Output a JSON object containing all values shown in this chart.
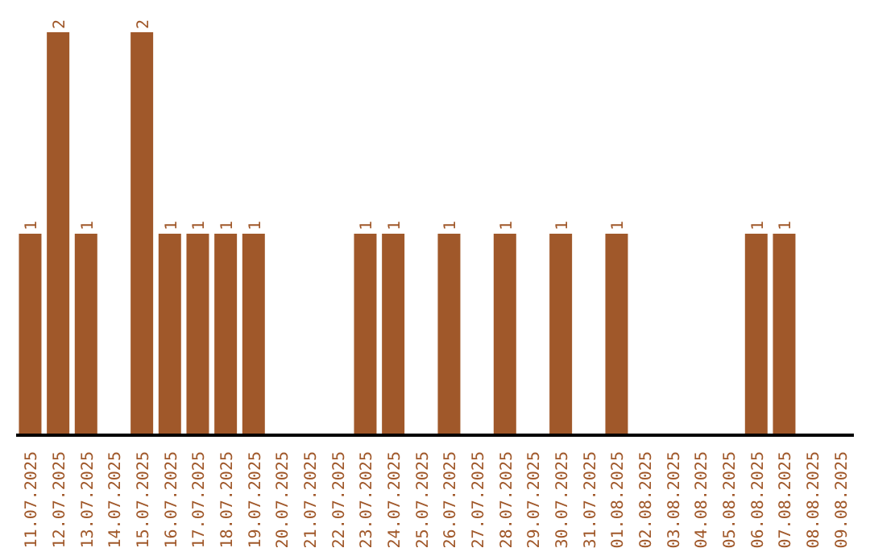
{
  "chart_data": {
    "type": "bar",
    "categories": [
      "11.07.2025",
      "12.07.2025",
      "13.07.2025",
      "14.07.2025",
      "15.07.2025",
      "16.07.2025",
      "17.07.2025",
      "18.07.2025",
      "19.07.2025",
      "20.07.2025",
      "21.07.2025",
      "22.07.2025",
      "23.07.2025",
      "24.07.2025",
      "25.07.2025",
      "26.07.2025",
      "27.07.2025",
      "28.07.2025",
      "29.07.2025",
      "30.07.2025",
      "31.07.2025",
      "01.08.2025",
      "02.08.2025",
      "03.08.2025",
      "04.08.2025",
      "05.08.2025",
      "06.08.2025",
      "07.08.2025",
      "08.08.2025",
      "09.08.2025"
    ],
    "values": [
      1,
      2,
      1,
      0,
      2,
      1,
      1,
      1,
      1,
      0,
      0,
      0,
      1,
      1,
      0,
      1,
      0,
      1,
      0,
      1,
      0,
      1,
      0,
      0,
      0,
      0,
      1,
      1,
      0,
      0
    ],
    "value_labels": [
      "1",
      "2",
      "1",
      null,
      "2",
      "1",
      "1",
      "1",
      "1",
      null,
      null,
      null,
      "1",
      "1",
      null,
      "1",
      null,
      "1",
      null,
      "1",
      null,
      "1",
      null,
      null,
      null,
      null,
      "1",
      "1",
      null,
      null
    ],
    "color": "#a0582a",
    "ylim": [
      0,
      2
    ],
    "tick_labels": "x",
    "grid": false
  }
}
